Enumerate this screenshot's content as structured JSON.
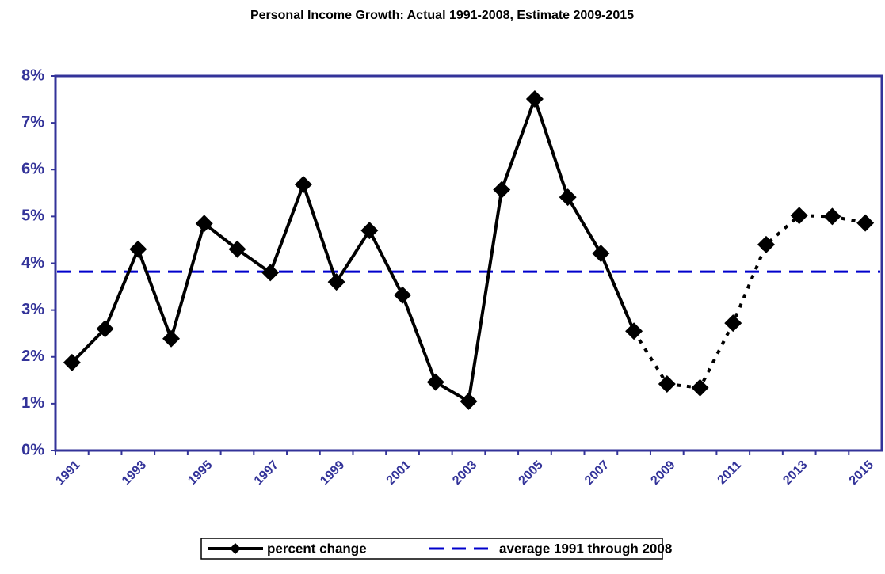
{
  "chart_data": {
    "type": "line",
    "title": "Personal Income Growth:   Actual 1991-2008, Estimate 2009-2015",
    "categories": [
      "1991",
      null,
      "1993",
      null,
      "1995",
      null,
      "1997",
      null,
      "1999",
      null,
      "2001",
      null,
      "2003",
      null,
      "2005",
      null,
      "2007",
      null,
      "2009",
      null,
      "2011",
      null,
      "2013",
      null,
      "2015"
    ],
    "series": [
      {
        "name": "percent change",
        "color": "#000000",
        "values": [
          1.88,
          2.6,
          4.3,
          2.39,
          4.85,
          4.3,
          3.8,
          5.68,
          3.6,
          4.7,
          3.32,
          1.46,
          1.05,
          5.57,
          7.51,
          5.41,
          4.21,
          2.55,
          1.42,
          1.34,
          2.72,
          4.4,
          5.02,
          5.0,
          4.86
        ],
        "dotted_from_index": 17
      }
    ],
    "reference_line": {
      "name": "average 1991 through 2008",
      "value": 3.82,
      "color": "#0000cc",
      "style": "dashed"
    },
    "ylim": [
      0,
      8
    ],
    "yticks": [
      {
        "value": 0,
        "label": "0%"
      },
      {
        "value": 1,
        "label": "1%"
      },
      {
        "value": 2,
        "label": "2%"
      },
      {
        "value": 3,
        "label": "3%"
      },
      {
        "value": 4,
        "label": "4%"
      },
      {
        "value": 5,
        "label": "5%"
      },
      {
        "value": 6,
        "label": "6%"
      },
      {
        "value": 7,
        "label": "7%"
      },
      {
        "value": 8,
        "label": "8%"
      }
    ],
    "axis_color": "#333399",
    "legend": "bottom"
  }
}
